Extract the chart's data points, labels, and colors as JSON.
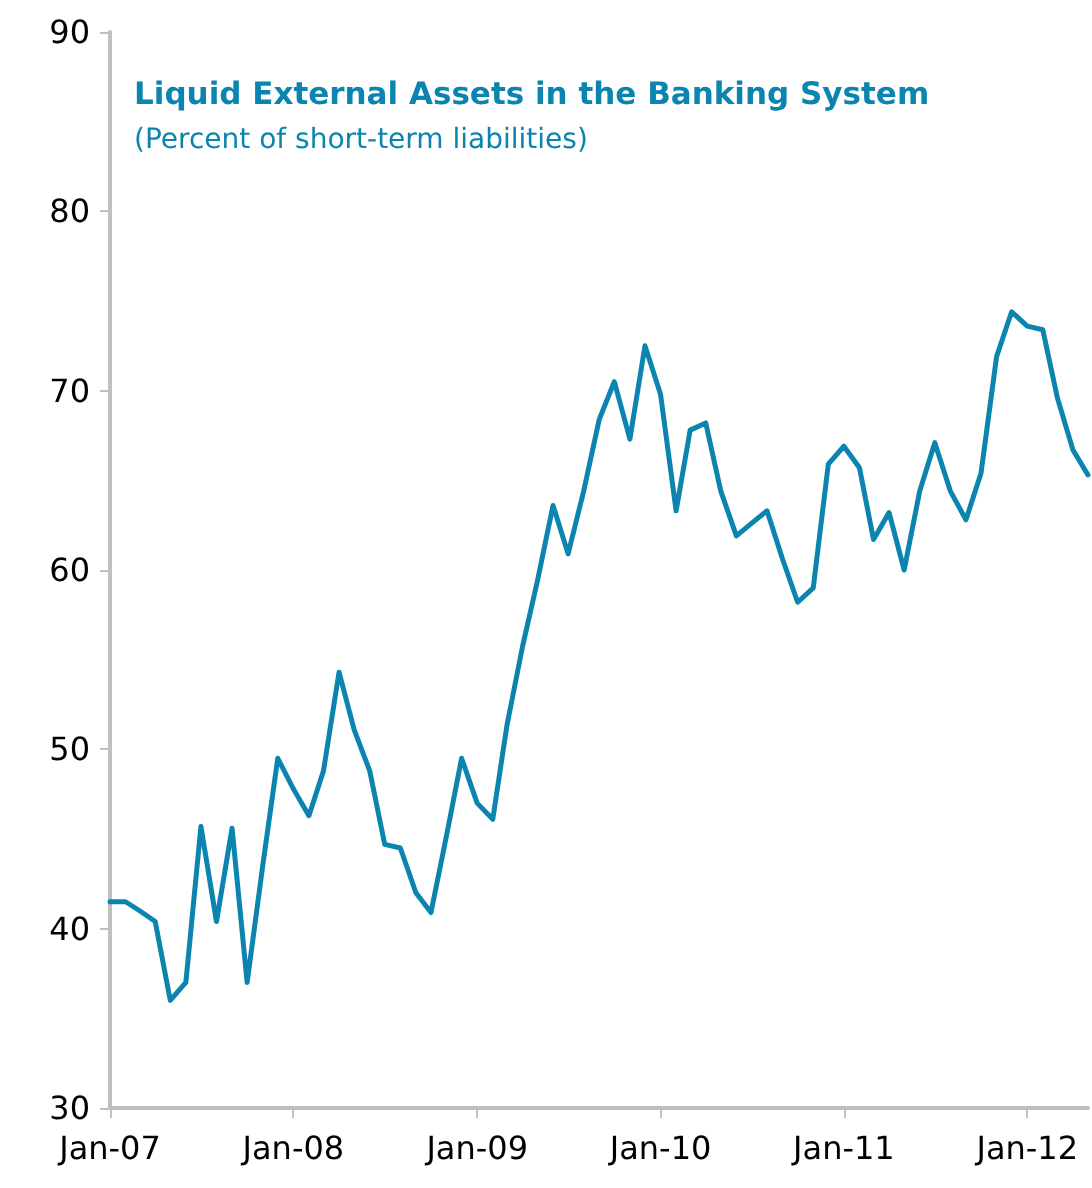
{
  "chart_data": {
    "type": "line",
    "title": "Liquid External Assets in the Banking System",
    "subtitle": "(Percent of short-term liabilities)",
    "x": [
      "2007-01",
      "2007-02",
      "2007-03",
      "2007-04",
      "2007-05",
      "2007-06",
      "2007-07",
      "2007-08",
      "2007-09",
      "2007-10",
      "2007-11",
      "2007-12",
      "2008-01",
      "2008-02",
      "2008-03",
      "2008-04",
      "2008-05",
      "2008-06",
      "2008-07",
      "2008-08",
      "2008-09",
      "2008-10",
      "2008-11",
      "2008-12",
      "2009-01",
      "2009-02",
      "2009-03",
      "2009-04",
      "2009-05",
      "2009-06",
      "2009-07",
      "2009-08",
      "2009-09",
      "2009-10",
      "2009-11",
      "2009-12",
      "2010-01",
      "2010-02",
      "2010-03",
      "2010-04",
      "2010-05",
      "2010-06",
      "2010-07",
      "2010-08",
      "2010-09",
      "2010-10",
      "2010-11",
      "2010-12",
      "2011-01",
      "2011-02",
      "2011-03",
      "2011-04",
      "2011-05",
      "2011-06",
      "2011-07",
      "2011-08",
      "2011-09",
      "2011-10",
      "2011-11",
      "2011-12",
      "2012-01",
      "2012-02",
      "2012-03",
      "2012-04",
      "2012-05"
    ],
    "series": [
      {
        "color": "#0b85b0",
        "values": [
          41.5,
          41.5,
          41.0,
          40.4,
          36.0,
          37.0,
          45.7,
          40.4,
          45.6,
          37.0,
          43.5,
          49.5,
          47.8,
          46.3,
          48.8,
          54.3,
          51.1,
          48.8,
          44.7,
          44.5,
          42.0,
          40.9,
          45.2,
          49.5,
          47.0,
          46.1,
          51.3,
          55.7,
          59.4,
          63.6,
          60.9,
          64.4,
          68.4,
          70.5,
          67.3,
          72.5,
          69.8,
          63.3,
          67.8,
          68.2,
          64.4,
          61.9,
          62.6,
          63.3,
          60.6,
          58.2,
          59.0,
          65.9,
          66.9,
          65.7,
          61.7,
          63.2,
          60.0,
          64.4,
          67.1,
          64.4,
          62.8,
          65.4,
          71.9,
          74.4,
          73.6,
          73.4,
          69.6,
          66.7,
          65.3
        ]
      }
    ],
    "xlim": [
      "2007-01",
      "2012-05"
    ],
    "xticks": [
      {
        "value": "2007-01",
        "label": "Jan-07"
      },
      {
        "value": "2008-01",
        "label": "Jan-08"
      },
      {
        "value": "2009-01",
        "label": "Jan-09"
      },
      {
        "value": "2010-01",
        "label": "Jan-10"
      },
      {
        "value": "2011-01",
        "label": "Jan-11"
      },
      {
        "value": "2012-01",
        "label": "Jan-12"
      }
    ],
    "ylim": [
      30,
      90
    ],
    "yticks": [
      30,
      40,
      50,
      60,
      70,
      80,
      90
    ],
    "grid": false,
    "marker": "none",
    "line_style": "solid"
  }
}
